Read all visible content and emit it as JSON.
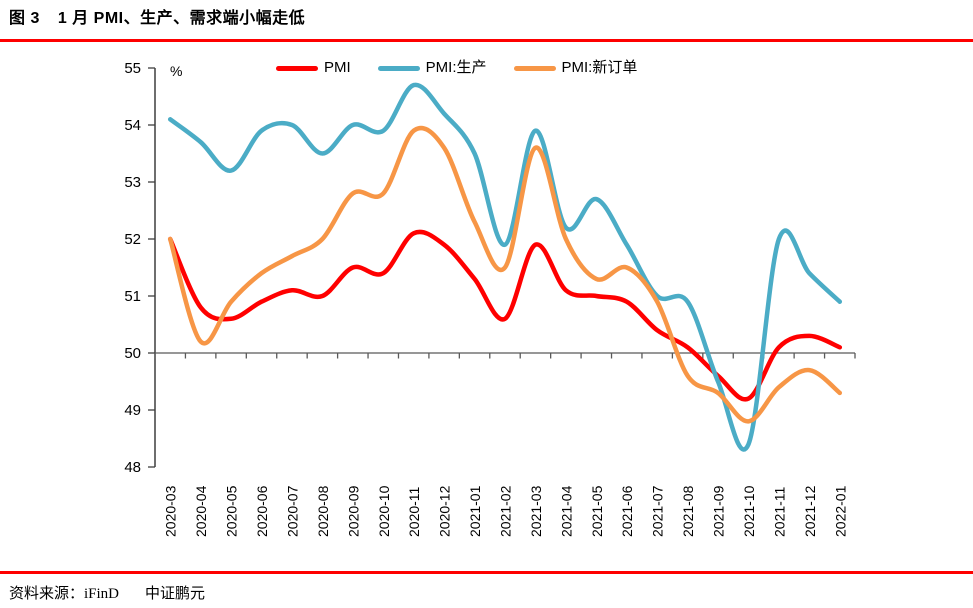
{
  "header": {
    "figure_label": "图 3",
    "title": "1 月 PMI、生产、需求端小幅走低"
  },
  "chart_data": {
    "type": "line",
    "title": "1 月 PMI、生产、需求端小幅走低",
    "unit_label": "%",
    "smooth": true,
    "grid": false,
    "legend_position": "top",
    "ylim": [
      48,
      55
    ],
    "y_tick_step": 1,
    "category_axis_value": 50,
    "categories": [
      "2020-03",
      "2020-04",
      "2020-05",
      "2020-06",
      "2020-07",
      "2020-08",
      "2020-09",
      "2020-10",
      "2020-11",
      "2020-12",
      "2021-01",
      "2021-02",
      "2021-03",
      "2021-04",
      "2021-05",
      "2021-06",
      "2021-07",
      "2021-08",
      "2021-09",
      "2021-10",
      "2021-11",
      "2021-12",
      "2022-01"
    ],
    "series": [
      {
        "name": "PMI",
        "color": "#FF0000",
        "values": [
          52.0,
          50.8,
          50.6,
          50.9,
          51.1,
          51.0,
          51.5,
          51.4,
          52.1,
          51.9,
          51.3,
          50.6,
          51.9,
          51.1,
          51.0,
          50.9,
          50.4,
          50.1,
          49.6,
          49.2,
          50.1,
          50.3,
          50.1
        ]
      },
      {
        "name": "PMI:生产",
        "color": "#4BACC6",
        "values": [
          54.1,
          53.7,
          53.2,
          53.9,
          54.0,
          53.5,
          54.0,
          53.9,
          54.7,
          54.2,
          53.5,
          51.9,
          53.9,
          52.2,
          52.7,
          51.9,
          51.0,
          50.9,
          49.5,
          48.4,
          52.0,
          51.4,
          50.9
        ]
      },
      {
        "name": "PMI:新订单",
        "color": "#F79646",
        "values": [
          52.0,
          50.2,
          50.9,
          51.4,
          51.7,
          52.0,
          52.8,
          52.8,
          53.9,
          53.6,
          52.3,
          51.5,
          53.6,
          52.0,
          51.3,
          51.5,
          50.9,
          49.6,
          49.3,
          48.8,
          49.4,
          49.7,
          49.3
        ]
      }
    ]
  },
  "footer": {
    "source_label": "资料来源：iFinD",
    "source_org": "中证鹏元"
  }
}
